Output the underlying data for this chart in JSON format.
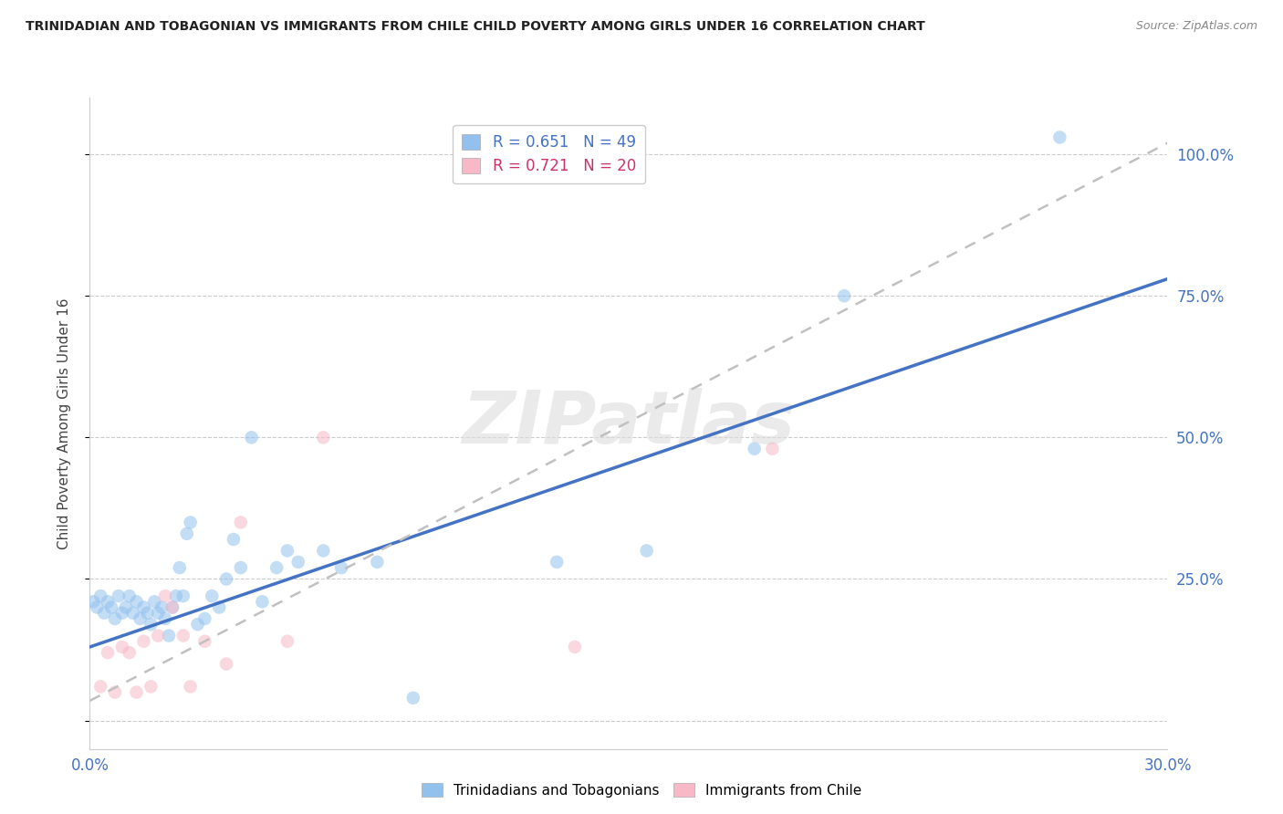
{
  "title": "TRINIDADIAN AND TOBAGONIAN VS IMMIGRANTS FROM CHILE CHILD POVERTY AMONG GIRLS UNDER 16 CORRELATION CHART",
  "source": "Source: ZipAtlas.com",
  "ylabel": "Child Poverty Among Girls Under 16",
  "xlim": [
    0.0,
    0.3
  ],
  "ylim": [
    -0.05,
    1.1
  ],
  "yticks": [
    0.0,
    0.25,
    0.5,
    0.75,
    1.0
  ],
  "ytick_labels": [
    "",
    "25.0%",
    "50.0%",
    "75.0%",
    "100.0%"
  ],
  "xticks": [
    0.0,
    0.06,
    0.12,
    0.18,
    0.24,
    0.3
  ],
  "xtick_labels": [
    "0.0%",
    "",
    "",
    "",
    "",
    "30.0%"
  ],
  "legend_blue_r": "R = 0.651",
  "legend_blue_n": "N = 49",
  "legend_pink_r": "R = 0.721",
  "legend_pink_n": "N = 20",
  "blue_color": "#92C1EE",
  "pink_color": "#F7B8C8",
  "blue_line_color": "#4472C4",
  "pink_line_color": "#C0C0C0",
  "watermark": "ZIPatlas",
  "background_color": "#FFFFFF",
  "blue_scatter_x": [
    0.001,
    0.002,
    0.003,
    0.004,
    0.005,
    0.006,
    0.007,
    0.008,
    0.009,
    0.01,
    0.011,
    0.012,
    0.013,
    0.014,
    0.015,
    0.016,
    0.017,
    0.018,
    0.019,
    0.02,
    0.021,
    0.022,
    0.023,
    0.024,
    0.025,
    0.026,
    0.027,
    0.028,
    0.03,
    0.032,
    0.034,
    0.036,
    0.038,
    0.04,
    0.042,
    0.045,
    0.048,
    0.052,
    0.055,
    0.058,
    0.065,
    0.07,
    0.08,
    0.09,
    0.13,
    0.155,
    0.185,
    0.21,
    0.27
  ],
  "blue_scatter_y": [
    0.21,
    0.2,
    0.22,
    0.19,
    0.21,
    0.2,
    0.18,
    0.22,
    0.19,
    0.2,
    0.22,
    0.19,
    0.21,
    0.18,
    0.2,
    0.19,
    0.17,
    0.21,
    0.19,
    0.2,
    0.18,
    0.15,
    0.2,
    0.22,
    0.27,
    0.22,
    0.33,
    0.35,
    0.17,
    0.18,
    0.22,
    0.2,
    0.25,
    0.32,
    0.27,
    0.5,
    0.21,
    0.27,
    0.3,
    0.28,
    0.3,
    0.27,
    0.28,
    0.04,
    0.28,
    0.3,
    0.48,
    0.75,
    1.03
  ],
  "pink_scatter_x": [
    0.003,
    0.005,
    0.007,
    0.009,
    0.011,
    0.013,
    0.015,
    0.017,
    0.019,
    0.021,
    0.023,
    0.026,
    0.028,
    0.032,
    0.038,
    0.042,
    0.055,
    0.065,
    0.135,
    0.19
  ],
  "pink_scatter_y": [
    0.06,
    0.12,
    0.05,
    0.13,
    0.12,
    0.05,
    0.14,
    0.06,
    0.15,
    0.22,
    0.2,
    0.15,
    0.06,
    0.14,
    0.1,
    0.35,
    0.14,
    0.5,
    0.13,
    0.48
  ],
  "blue_line_x": [
    0.0,
    0.3
  ],
  "blue_line_y": [
    0.13,
    0.78
  ],
  "pink_line_x": [
    0.0,
    0.3
  ],
  "pink_line_y": [
    0.035,
    1.02
  ],
  "marker_size": 110,
  "marker_alpha": 0.55
}
